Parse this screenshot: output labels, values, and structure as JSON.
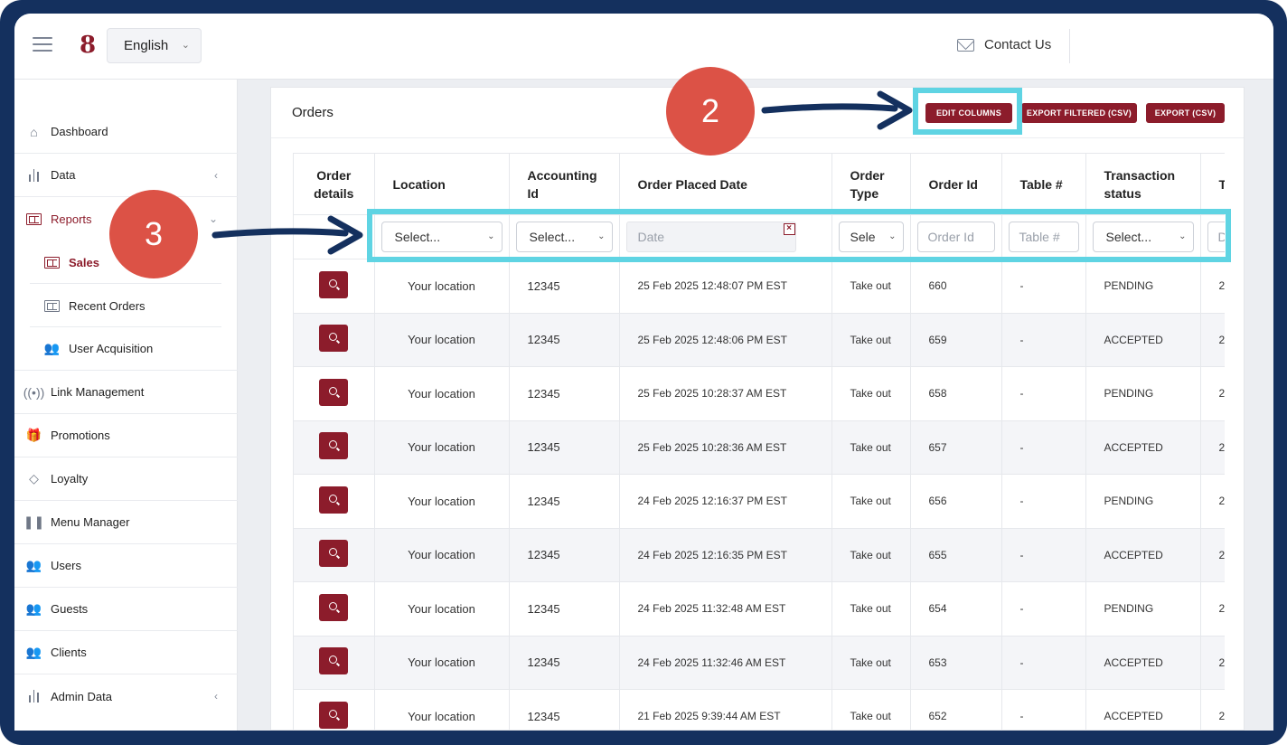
{
  "header": {
    "language": "English",
    "contact_label": "Contact Us",
    "logo_text": "8"
  },
  "sidebar": {
    "items": [
      {
        "label": "Dashboard",
        "icon": "home-icon"
      },
      {
        "label": "Data",
        "icon": "bar-chart-icon"
      },
      {
        "label": "Reports",
        "icon": "report-icon",
        "active": true
      },
      {
        "label": "Sales",
        "icon": "report-icon",
        "sub": true,
        "active": true
      },
      {
        "label": "Recent Orders",
        "icon": "report-icon",
        "sub": true
      },
      {
        "label": "User Acquisition",
        "icon": "users-icon",
        "sub": true
      },
      {
        "label": "Link Management",
        "icon": "broadcast-icon"
      },
      {
        "label": "Promotions",
        "icon": "gift-icon"
      },
      {
        "label": "Loyalty",
        "icon": "diamond-icon"
      },
      {
        "label": "Menu Manager",
        "icon": "utensils-icon"
      },
      {
        "label": "Users",
        "icon": "users-icon"
      },
      {
        "label": "Guests",
        "icon": "users-icon"
      },
      {
        "label": "Clients",
        "icon": "users-icon"
      },
      {
        "label": "Admin Data",
        "icon": "bar-chart-icon"
      }
    ]
  },
  "orders": {
    "title": "Orders",
    "buttons": {
      "edit_columns": "EDIT COLUMNS",
      "export_filtered": "EXPORT FILTERED (CSV)",
      "export": "EXPORT (CSV)"
    },
    "columns": {
      "order_details": "Order details",
      "location": "Location",
      "accounting_id": "Accounting Id",
      "order_placed_date": "Order Placed Date",
      "order_type": "Order Type",
      "order_id": "Order Id",
      "table": "Table #",
      "transaction_status": "Transaction status",
      "next": "T"
    },
    "filters": {
      "location": "Select...",
      "accounting_id": "Select...",
      "date": "Date",
      "order_type": "Sele",
      "order_id": "Order Id",
      "table": "Table #",
      "transaction_status": "Select...",
      "next": "D"
    },
    "rows": [
      {
        "location": "Your location",
        "accounting_id": "12345",
        "date": "25 Feb 2025 12:48:07 PM EST",
        "type": "Take out",
        "order_id": "660",
        "table": "-",
        "status": "PENDING",
        "next": "2"
      },
      {
        "location": "Your location",
        "accounting_id": "12345",
        "date": "25 Feb 2025 12:48:06 PM EST",
        "type": "Take out",
        "order_id": "659",
        "table": "-",
        "status": "ACCEPTED",
        "next": "2"
      },
      {
        "location": "Your location",
        "accounting_id": "12345",
        "date": "25 Feb 2025 10:28:37 AM EST",
        "type": "Take out",
        "order_id": "658",
        "table": "-",
        "status": "PENDING",
        "next": "2"
      },
      {
        "location": "Your location",
        "accounting_id": "12345",
        "date": "25 Feb 2025 10:28:36 AM EST",
        "type": "Take out",
        "order_id": "657",
        "table": "-",
        "status": "ACCEPTED",
        "next": "2"
      },
      {
        "location": "Your location",
        "accounting_id": "12345",
        "date": "24 Feb 2025 12:16:37 PM EST",
        "type": "Take out",
        "order_id": "656",
        "table": "-",
        "status": "PENDING",
        "next": "2"
      },
      {
        "location": "Your location",
        "accounting_id": "12345",
        "date": "24 Feb 2025 12:16:35 PM EST",
        "type": "Take out",
        "order_id": "655",
        "table": "-",
        "status": "ACCEPTED",
        "next": "2"
      },
      {
        "location": "Your location",
        "accounting_id": "12345",
        "date": "24 Feb 2025 11:32:48 AM EST",
        "type": "Take out",
        "order_id": "654",
        "table": "-",
        "status": "PENDING",
        "next": "2"
      },
      {
        "location": "Your location",
        "accounting_id": "12345",
        "date": "24 Feb 2025 11:32:46 AM EST",
        "type": "Take out",
        "order_id": "653",
        "table": "-",
        "status": "ACCEPTED",
        "next": "2"
      },
      {
        "location": "Your location",
        "accounting_id": "12345",
        "date": "21 Feb 2025 9:39:44 AM EST",
        "type": "Take out",
        "order_id": "652",
        "table": "-",
        "status": "ACCEPTED",
        "next": "2"
      }
    ]
  },
  "annotations": {
    "step_2": "2",
    "step_3": "3"
  },
  "colors": {
    "brand": "#8c1c2b",
    "frame": "#14305e",
    "highlight": "#5fd4e3",
    "annotation": "#dc5246"
  }
}
